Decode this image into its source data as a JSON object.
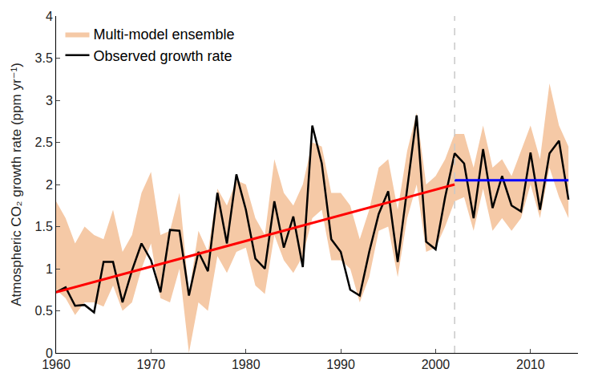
{
  "chart_data": {
    "type": "line",
    "y_label": "Atmospheric CO₂ growth rate (ppm yr⁻¹)",
    "x": [
      1960,
      1961,
      1962,
      1963,
      1964,
      1965,
      1966,
      1967,
      1968,
      1969,
      1970,
      1971,
      1972,
      1973,
      1974,
      1975,
      1976,
      1977,
      1978,
      1979,
      1980,
      1981,
      1982,
      1983,
      1984,
      1985,
      1986,
      1987,
      1988,
      1989,
      1990,
      1991,
      1992,
      1993,
      1994,
      1995,
      1996,
      1997,
      1998,
      1999,
      2000,
      2001,
      2002,
      2003,
      2004,
      2005,
      2006,
      2007,
      2008,
      2009,
      2010,
      2011,
      2012,
      2013,
      2014
    ],
    "series": [
      {
        "name": "Multi-model ensemble",
        "type": "band",
        "color": "#f5c9a6",
        "lower": [
          0.75,
          0.65,
          0.45,
          0.6,
          0.6,
          0.55,
          0.8,
          0.5,
          0.6,
          1.0,
          1.3,
          0.65,
          0.6,
          1.0,
          0.0,
          0.6,
          0.5,
          1.15,
          0.95,
          1.2,
          1.25,
          0.8,
          0.7,
          1.4,
          1.1,
          0.95,
          1.15,
          1.6,
          1.7,
          1.1,
          1.1,
          1.0,
          0.6,
          0.9,
          1.45,
          1.5,
          0.9,
          1.6,
          2.0,
          1.2,
          1.25,
          1.5,
          1.8,
          1.85,
          1.45,
          1.95,
          1.45,
          1.6,
          1.45,
          1.6,
          2.0,
          1.6,
          2.2,
          1.85,
          1.6
        ],
        "upper": [
          1.8,
          1.6,
          1.3,
          1.5,
          1.4,
          1.35,
          1.7,
          1.2,
          1.4,
          1.9,
          2.15,
          1.4,
          1.45,
          1.9,
          0.7,
          1.45,
          1.2,
          1.95,
          1.75,
          2.05,
          2.0,
          1.6,
          1.4,
          2.3,
          1.9,
          1.75,
          2.0,
          2.5,
          2.45,
          1.9,
          1.9,
          1.75,
          1.35,
          1.7,
          2.2,
          2.3,
          1.7,
          2.4,
          2.85,
          2.0,
          2.1,
          2.3,
          2.6,
          2.6,
          2.2,
          2.7,
          2.2,
          2.3,
          2.1,
          2.4,
          2.7,
          2.3,
          3.2,
          2.7,
          2.45
        ]
      },
      {
        "name": "Observed growth rate",
        "type": "line",
        "color": "#000000",
        "values": [
          0.72,
          0.78,
          0.56,
          0.57,
          0.48,
          1.08,
          1.08,
          0.6,
          0.98,
          1.3,
          1.1,
          0.72,
          1.46,
          1.45,
          0.68,
          1.2,
          0.97,
          1.9,
          1.3,
          2.12,
          1.7,
          1.12,
          1.0,
          1.8,
          1.25,
          1.62,
          1.02,
          2.7,
          2.25,
          1.35,
          1.2,
          0.75,
          0.68,
          1.2,
          1.65,
          1.92,
          1.08,
          1.95,
          2.82,
          1.32,
          1.23,
          1.85,
          2.37,
          2.25,
          1.6,
          2.42,
          1.72,
          2.1,
          1.75,
          1.68,
          2.38,
          1.7,
          2.37,
          2.52,
          1.82
        ]
      },
      {
        "type": "line",
        "color": "#ff0000",
        "x": [
          1960,
          2002
        ],
        "values": [
          0.72,
          2.0
        ]
      },
      {
        "type": "line",
        "color": "#0000ff",
        "x": [
          2002,
          2014
        ],
        "values": [
          2.05,
          2.05
        ]
      }
    ],
    "vlines": [
      {
        "x": 2002,
        "color": "#c8c8c8",
        "line_style": "dashed"
      }
    ],
    "xlim": [
      1960,
      2015
    ],
    "xticks": [
      1960,
      1970,
      1980,
      1990,
      2000,
      2010
    ],
    "ylim": [
      0,
      4
    ],
    "yticks": [
      0,
      0.5,
      1,
      1.5,
      2,
      2.5,
      3,
      3.5,
      4
    ],
    "grid": false,
    "legend": "top-left"
  }
}
